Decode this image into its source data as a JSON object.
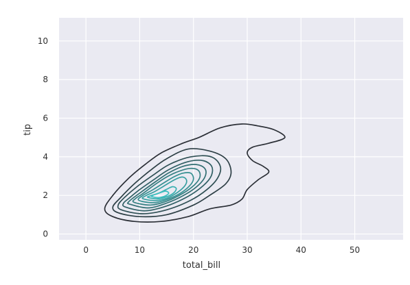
{
  "chart_data": {
    "type": "kde-contour",
    "xlabel": "total_bill",
    "ylabel": "tip",
    "xlim": [
      -5,
      59
    ],
    "ylim": [
      -0.3,
      11.2
    ],
    "x_ticks": [
      0,
      10,
      20,
      30,
      40,
      50
    ],
    "y_ticks": [
      0,
      2,
      4,
      6,
      8,
      10
    ],
    "grid": true,
    "legend": "none",
    "colors": {
      "background": "#eaeaf2",
      "grid": "#ffffff",
      "outer_contour": "#2b2f36",
      "inner_contour": "#3bbfbf"
    },
    "contours": [
      {
        "level": 1,
        "points": [
          [
            5,
            0.9
          ],
          [
            9,
            0.65
          ],
          [
            14,
            0.65
          ],
          [
            19,
            0.9
          ],
          [
            23,
            1.3
          ],
          [
            27,
            1.5
          ],
          [
            29,
            1.8
          ],
          [
            30,
            2.3
          ],
          [
            32,
            2.8
          ],
          [
            34,
            3.2
          ],
          [
            33,
            3.5
          ],
          [
            31,
            3.8
          ],
          [
            30,
            4.2
          ],
          [
            31,
            4.5
          ],
          [
            34,
            4.7
          ],
          [
            37,
            5.0
          ],
          [
            35,
            5.4
          ],
          [
            32,
            5.6
          ],
          [
            29,
            5.7
          ],
          [
            25,
            5.5
          ],
          [
            21,
            5.0
          ],
          [
            18,
            4.7
          ],
          [
            14,
            4.2
          ],
          [
            11,
            3.6
          ],
          [
            8,
            2.9
          ],
          [
            5,
            2.0
          ],
          [
            3.5,
            1.3
          ]
        ]
      },
      {
        "level": 2,
        "points": [
          [
            6,
            1.1
          ],
          [
            10,
            0.9
          ],
          [
            15,
            1.0
          ],
          [
            20,
            1.5
          ],
          [
            23,
            2.0
          ],
          [
            26,
            2.6
          ],
          [
            27,
            3.2
          ],
          [
            26,
            3.9
          ],
          [
            23,
            4.3
          ],
          [
            19,
            4.4
          ],
          [
            15,
            3.9
          ],
          [
            12,
            3.3
          ],
          [
            9,
            2.6
          ],
          [
            6.5,
            1.9
          ],
          [
            5,
            1.4
          ]
        ]
      },
      {
        "level": 3,
        "points": [
          [
            6.6,
            1.25
          ],
          [
            10.5,
            1.05
          ],
          [
            15,
            1.25
          ],
          [
            19.5,
            1.75
          ],
          [
            22.5,
            2.3
          ],
          [
            24.5,
            2.9
          ],
          [
            25,
            3.5
          ],
          [
            23.3,
            4.0
          ],
          [
            19.5,
            4.0
          ],
          [
            15.5,
            3.6
          ],
          [
            12.5,
            3.05
          ],
          [
            9.5,
            2.45
          ],
          [
            7.2,
            1.9
          ],
          [
            6,
            1.5
          ]
        ]
      },
      {
        "level": 4,
        "points": [
          [
            7.3,
            1.4
          ],
          [
            11,
            1.2
          ],
          [
            15,
            1.45
          ],
          [
            19,
            1.95
          ],
          [
            21.8,
            2.5
          ],
          [
            23.3,
            3.0
          ],
          [
            23.4,
            3.5
          ],
          [
            21.8,
            3.8
          ],
          [
            19,
            3.75
          ],
          [
            15.5,
            3.35
          ],
          [
            12.8,
            2.85
          ],
          [
            10,
            2.3
          ],
          [
            8,
            1.85
          ],
          [
            7,
            1.6
          ]
        ]
      },
      {
        "level": 5,
        "points": [
          [
            8.1,
            1.55
          ],
          [
            11.5,
            1.35
          ],
          [
            15,
            1.6
          ],
          [
            18.5,
            2.05
          ],
          [
            21,
            2.55
          ],
          [
            22.2,
            3.0
          ],
          [
            22.1,
            3.4
          ],
          [
            20.5,
            3.6
          ],
          [
            18,
            3.5
          ],
          [
            15.3,
            3.15
          ],
          [
            12.9,
            2.7
          ],
          [
            10.4,
            2.2
          ],
          [
            8.7,
            1.85
          ],
          [
            7.9,
            1.65
          ]
        ]
      },
      {
        "level": 6,
        "points": [
          [
            8.9,
            1.65
          ],
          [
            12,
            1.5
          ],
          [
            15,
            1.7
          ],
          [
            18,
            2.1
          ],
          [
            20.2,
            2.55
          ],
          [
            21.2,
            2.95
          ],
          [
            20.9,
            3.3
          ],
          [
            19.4,
            3.4
          ],
          [
            17.3,
            3.25
          ],
          [
            15,
            2.95
          ],
          [
            12.8,
            2.55
          ],
          [
            10.6,
            2.1
          ],
          [
            9.3,
            1.85
          ]
        ]
      },
      {
        "level": 7,
        "points": [
          [
            9.8,
            1.75
          ],
          [
            12.5,
            1.62
          ],
          [
            15,
            1.78
          ],
          [
            17.5,
            2.1
          ],
          [
            19.3,
            2.5
          ],
          [
            20,
            2.85
          ],
          [
            19.5,
            3.15
          ],
          [
            18,
            3.15
          ],
          [
            16.3,
            2.95
          ],
          [
            14.5,
            2.65
          ],
          [
            12.5,
            2.3
          ],
          [
            10.6,
            2.0
          ]
        ]
      },
      {
        "level": 8,
        "points": [
          [
            10.6,
            1.83
          ],
          [
            13,
            1.73
          ],
          [
            15.2,
            1.87
          ],
          [
            17,
            2.15
          ],
          [
            18.4,
            2.5
          ],
          [
            18.7,
            2.8
          ],
          [
            17.9,
            2.95
          ],
          [
            16.4,
            2.8
          ],
          [
            14.6,
            2.5
          ],
          [
            12.8,
            2.2
          ],
          [
            11.1,
            1.98
          ]
        ]
      },
      {
        "level": 9,
        "points": [
          [
            11.5,
            1.9
          ],
          [
            13.3,
            1.82
          ],
          [
            15,
            1.93
          ],
          [
            16.3,
            2.12
          ],
          [
            16.8,
            2.35
          ],
          [
            16.1,
            2.45
          ],
          [
            14.9,
            2.3
          ],
          [
            13.4,
            2.1
          ],
          [
            12,
            1.98
          ]
        ]
      },
      {
        "level": 10,
        "points": [
          [
            12.2,
            1.95
          ],
          [
            13.5,
            1.88
          ],
          [
            14.8,
            1.98
          ],
          [
            15.4,
            2.12
          ],
          [
            14.8,
            2.22
          ],
          [
            13.6,
            2.12
          ],
          [
            12.6,
            2.02
          ]
        ]
      }
    ]
  }
}
